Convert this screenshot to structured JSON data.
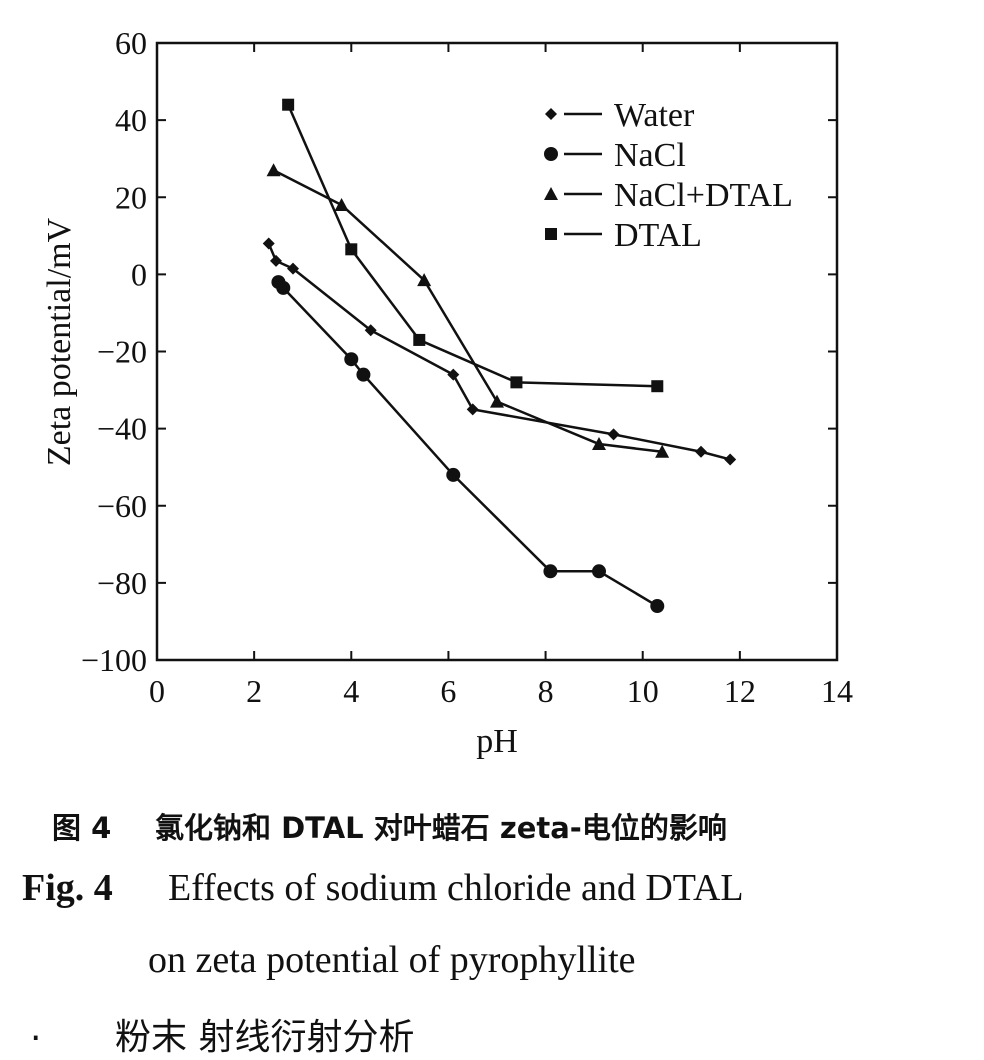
{
  "chart_data": {
    "type": "line",
    "xlabel": "pH",
    "ylabel": "Zeta potential/mV",
    "xlim": [
      0,
      14
    ],
    "ylim": [
      -100,
      60
    ],
    "xticks": [
      0,
      2,
      4,
      6,
      8,
      10,
      12,
      14
    ],
    "yticks": [
      60,
      40,
      20,
      0,
      -20,
      -40,
      -60,
      -80,
      -100
    ],
    "ytick_labels": [
      "60",
      "40",
      "20",
      "0",
      "−20",
      "−40",
      "−60",
      "−80",
      "−100"
    ],
    "grid": false,
    "legend_position": "top-right",
    "series": [
      {
        "name": "Water",
        "marker": "diamond",
        "points": [
          [
            2.3,
            8
          ],
          [
            2.45,
            3.5
          ],
          [
            2.8,
            1.5
          ],
          [
            4.4,
            -14.5
          ],
          [
            6.1,
            -26
          ],
          [
            6.5,
            -35
          ],
          [
            9.4,
            -41.5
          ],
          [
            11.2,
            -46
          ],
          [
            11.8,
            -48
          ]
        ]
      },
      {
        "name": "NaCl",
        "marker": "circle",
        "points": [
          [
            2.5,
            -2
          ],
          [
            2.6,
            -3.5
          ],
          [
            4.0,
            -22
          ],
          [
            4.25,
            -26
          ],
          [
            6.1,
            -52
          ],
          [
            8.1,
            -77
          ],
          [
            9.1,
            -77
          ],
          [
            10.3,
            -86
          ]
        ]
      },
      {
        "name": "NaCl+DTAL",
        "marker": "triangle",
        "points": [
          [
            2.4,
            27
          ],
          [
            3.8,
            18
          ],
          [
            5.5,
            -1.5
          ],
          [
            7.0,
            -33
          ],
          [
            9.1,
            -44
          ],
          [
            10.4,
            -46
          ]
        ]
      },
      {
        "name": "DTAL",
        "marker": "square",
        "points": [
          [
            2.7,
            44
          ],
          [
            4.0,
            6.5
          ],
          [
            5.4,
            -17
          ],
          [
            7.4,
            -28
          ],
          [
            10.3,
            -29
          ]
        ]
      }
    ]
  },
  "captions": {
    "cn_label": "图 4",
    "cn_text": "氯化钠和 DTAL 对叶蜡石 zeta-电位的影响",
    "en_label": "Fig. 4",
    "en_line1": "Effects of sodium chloride and DTAL",
    "en_line2": "on zeta potential of pyrophyllite",
    "body_dot": ".",
    "body_text": "粉末   射线衍射分析"
  }
}
